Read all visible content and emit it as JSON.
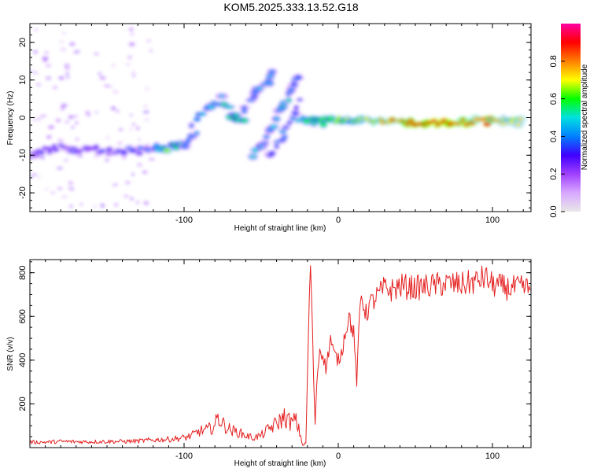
{
  "title": "KOM5.2025.333.13.52.G18",
  "chart_data": [
    {
      "type": "heatmap",
      "name": "spectrogram",
      "xlabel": "Height of straight line (km)",
      "ylabel": "Frequency (Hz)",
      "xlim": [
        -200,
        125
      ],
      "ylim": [
        -25,
        25
      ],
      "xticks": [
        -100,
        0,
        100
      ],
      "yticks": [
        -20,
        -10,
        0,
        10,
        20
      ],
      "colorbar": {
        "label": "Normalized spectral amplitude",
        "range": [
          0,
          1
        ],
        "ticks": [
          0.0,
          0.2,
          0.4,
          0.6,
          0.8
        ],
        "tick_labels": [
          "0.0",
          "0.2",
          "0.4",
          "0.6",
          "0.8"
        ],
        "colormap": [
          "#e8e8e8",
          "#d8a8ff",
          "#a040ff",
          "#4000ff",
          "#0080ff",
          "#00e0e0",
          "#00ff00",
          "#ffff00",
          "#ff8000",
          "#ff0000",
          "#ff00a0"
        ]
      },
      "features": [
        {
          "name": "low-altitude noise cloud",
          "points": [
            [
              -200,
              -10,
              0.25
            ],
            [
              -190,
              -9,
              0.3
            ],
            [
              -180,
              -8,
              0.3
            ],
            [
              -170,
              -9,
              0.3
            ],
            [
              -160,
              -8,
              0.3
            ],
            [
              -150,
              -9,
              0.3
            ],
            [
              -140,
              -9,
              0.35
            ],
            [
              -130,
              -9,
              0.35
            ],
            [
              -120,
              -8,
              0.4
            ],
            [
              -110,
              -8,
              0.6
            ],
            [
              -100,
              -7,
              0.45
            ],
            [
              -95,
              -5,
              0.45
            ],
            [
              -90,
              -3,
              0.4
            ]
          ]
        },
        {
          "name": "rising arc 1",
          "points": [
            [
              -95,
              -2,
              0.45
            ],
            [
              -88,
              1,
              0.45
            ],
            [
              -82,
              3,
              0.45
            ],
            [
              -75,
              5,
              0.5
            ],
            [
              -70,
              1,
              0.55
            ],
            [
              -65,
              0,
              0.6
            ],
            [
              -60,
              0,
              0.5
            ]
          ]
        },
        {
          "name": "rising arc 2",
          "points": [
            [
              -62,
              2,
              0.4
            ],
            [
              -55,
              5,
              0.4
            ],
            [
              -50,
              8,
              0.45
            ],
            [
              -45,
              10,
              0.45
            ],
            [
              -40,
              12,
              0.45
            ]
          ]
        },
        {
          "name": "rising arc 3",
          "points": [
            [
              -55,
              -10,
              0.45
            ],
            [
              -50,
              -7,
              0.45
            ],
            [
              -45,
              -4,
              0.45
            ],
            [
              -42,
              -1,
              0.45
            ],
            [
              -38,
              2,
              0.45
            ],
            [
              -33,
              5,
              0.5
            ],
            [
              -30,
              8,
              0.45
            ],
            [
              -27,
              10,
              0.4
            ],
            [
              -24,
              12,
              0.4
            ]
          ]
        },
        {
          "name": "rising arc 4",
          "points": [
            [
              -45,
              -10,
              0.35
            ],
            [
              -40,
              -8,
              0.4
            ],
            [
              -36,
              -5,
              0.4
            ],
            [
              -32,
              -2,
              0.4
            ],
            [
              -28,
              2,
              0.35
            ],
            [
              -24,
              5,
              0.35
            ]
          ]
        },
        {
          "name": "stable trace",
          "points": [
            [
              -25,
              0,
              0.5
            ],
            [
              -20,
              -0.5,
              0.55
            ],
            [
              -10,
              -1,
              0.55
            ],
            [
              0,
              0,
              0.65
            ],
            [
              10,
              -1,
              0.65
            ],
            [
              20,
              -1,
              0.7
            ],
            [
              30,
              -1,
              0.75
            ],
            [
              40,
              -1,
              0.8
            ],
            [
              50,
              -1,
              0.88
            ],
            [
              60,
              -1,
              0.9
            ],
            [
              70,
              -1,
              0.88
            ],
            [
              80,
              -1,
              0.85
            ],
            [
              90,
              -1,
              0.82
            ],
            [
              100,
              -1,
              0.8
            ],
            [
              110,
              -1,
              0.72
            ],
            [
              120,
              -1,
              0.68
            ]
          ]
        }
      ]
    },
    {
      "type": "line",
      "name": "snr",
      "xlabel": "Height of straight line (km)",
      "ylabel": "SNR (v/v)",
      "xlim": [
        -200,
        125
      ],
      "ylim": [
        0,
        860
      ],
      "xticks": [
        -100,
        0,
        100
      ],
      "yticks": [
        200,
        400,
        600,
        800
      ],
      "color": "#e52020",
      "series": [
        {
          "name": "SNR",
          "x": [
            -200,
            -190,
            -180,
            -170,
            -160,
            -150,
            -140,
            -130,
            -120,
            -110,
            -100,
            -95,
            -90,
            -85,
            -80,
            -78,
            -75,
            -70,
            -65,
            -60,
            -55,
            -50,
            -45,
            -40,
            -35,
            -30,
            -28,
            -25,
            -23,
            -21,
            -20,
            -18,
            -16,
            -15,
            -14,
            -12,
            -10,
            -8,
            -5,
            -3,
            0,
            2,
            5,
            7,
            10,
            12,
            14,
            15,
            18,
            20,
            25,
            30,
            35,
            40,
            50,
            60,
            70,
            80,
            90,
            95,
            100,
            110,
            120,
            125
          ],
          "values": [
            25,
            25,
            28,
            27,
            27,
            28,
            28,
            30,
            35,
            38,
            45,
            55,
            75,
            80,
            100,
            140,
            110,
            80,
            70,
            55,
            45,
            55,
            85,
            110,
            140,
            110,
            130,
            70,
            10,
            20,
            330,
            860,
            330,
            100,
            300,
            450,
            430,
            360,
            500,
            430,
            400,
            430,
            550,
            600,
            520,
            300,
            620,
            700,
            610,
            650,
            690,
            730,
            720,
            740,
            730,
            740,
            750,
            745,
            760,
            780,
            745,
            730,
            730,
            725
          ]
        }
      ]
    }
  ]
}
